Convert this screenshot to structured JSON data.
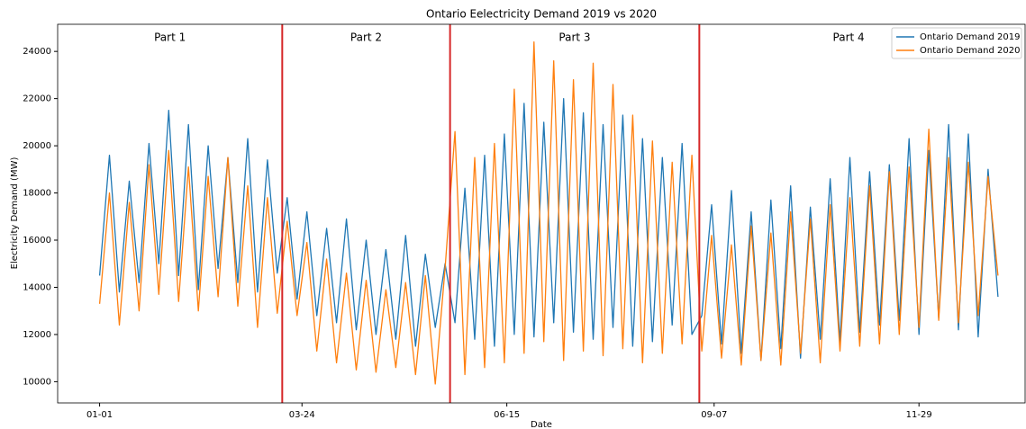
{
  "chart_data": {
    "type": "line",
    "title": "Ontario Eelectricity Demand 2019 vs 2020",
    "x_label": "Date",
    "y_label": "Electricity Demand (MW)",
    "x": [
      0,
      4,
      8,
      12,
      16,
      20,
      24,
      28,
      32,
      36,
      40,
      44,
      48,
      52,
      56,
      60,
      64,
      68,
      72,
      76,
      80,
      84,
      88,
      92,
      96,
      100,
      104,
      108,
      112,
      116,
      120,
      124,
      128,
      132,
      136,
      140,
      144,
      148,
      152,
      156,
      160,
      164,
      168,
      172,
      176,
      180,
      184,
      188,
      192,
      196,
      200,
      204,
      208,
      212,
      216,
      220,
      224,
      228,
      232,
      236,
      240,
      244,
      248,
      252,
      256,
      260,
      264,
      268,
      272,
      276,
      280,
      284,
      288,
      292,
      296,
      300,
      304,
      308,
      312,
      316,
      320,
      324,
      328,
      332,
      336,
      340,
      344,
      348,
      352,
      356,
      360,
      364
    ],
    "series": [
      {
        "name": "Ontario Demand 2019",
        "color": "#1f77b4",
        "values": [
          14500,
          19600,
          13800,
          18500,
          14200,
          20100,
          15000,
          21500,
          14500,
          20900,
          13900,
          20000,
          14800,
          19500,
          14200,
          20300,
          13800,
          19400,
          14600,
          17800,
          13500,
          17200,
          12800,
          16500,
          12500,
          16900,
          12200,
          16000,
          12000,
          15600,
          11800,
          16200,
          11500,
          15400,
          12300,
          15000,
          12500,
          18200,
          11800,
          19600,
          11500,
          20500,
          12000,
          21800,
          11900,
          21000,
          12500,
          22000,
          12100,
          21400,
          11800,
          20900,
          12300,
          21300,
          11500,
          20300,
          11700,
          19500,
          12400,
          20100,
          12000,
          12800,
          17500,
          11600,
          18100,
          11200,
          17200,
          10900,
          17700,
          11400,
          18300,
          11000,
          17400,
          11800,
          18600,
          11700,
          19500,
          12100,
          18900,
          12400,
          19200,
          12600,
          20300,
          12000,
          19800,
          12700,
          20900,
          12200,
          20500,
          11900,
          19000,
          13600
        ]
      },
      {
        "name": "Ontario Demand 2020",
        "color": "#ff7f0e",
        "values": [
          13300,
          18000,
          12400,
          17600,
          13000,
          19200,
          13700,
          19800,
          13400,
          19100,
          13000,
          18700,
          13600,
          19500,
          13200,
          18300,
          12300,
          17800,
          12900,
          16800,
          12800,
          15900,
          11300,
          15200,
          10800,
          14600,
          10500,
          14300,
          10400,
          13900,
          10600,
          14200,
          10300,
          14500,
          9900,
          14800,
          20600,
          10300,
          19500,
          10600,
          20100,
          10800,
          22400,
          11200,
          24400,
          11700,
          23600,
          10900,
          22800,
          11300,
          23500,
          11100,
          22600,
          11400,
          21300,
          10800,
          20200,
          11200,
          19300,
          11600,
          19600,
          11300,
          16200,
          11000,
          15800,
          10700,
          16600,
          10900,
          16300,
          10700,
          17200,
          11200,
          16900,
          10800,
          17500,
          11300,
          17800,
          11500,
          18300,
          11600,
          18900,
          12000,
          19100,
          12300,
          20700,
          12600,
          19500,
          12500,
          19300,
          12800,
          18700,
          14500
        ]
      }
    ],
    "xlim": [
      -17,
      375
    ],
    "xticks": [
      {
        "value": 0,
        "label": "01-01"
      },
      {
        "value": 82,
        "label": "03-24"
      },
      {
        "value": 165,
        "label": "06-15"
      },
      {
        "value": 249,
        "label": "09-07"
      },
      {
        "value": 332,
        "label": "11-29"
      }
    ],
    "ylim": [
      9100,
      25150
    ],
    "yticks": [
      10000,
      12000,
      14000,
      16000,
      18000,
      20000,
      22000,
      24000
    ],
    "dividers": {
      "color": "#d62728",
      "x": [
        74,
        142,
        243
      ]
    },
    "parts": [
      "Part 1",
      "Part 2",
      "Part 3",
      "Part 4"
    ],
    "legend": "upper right"
  }
}
